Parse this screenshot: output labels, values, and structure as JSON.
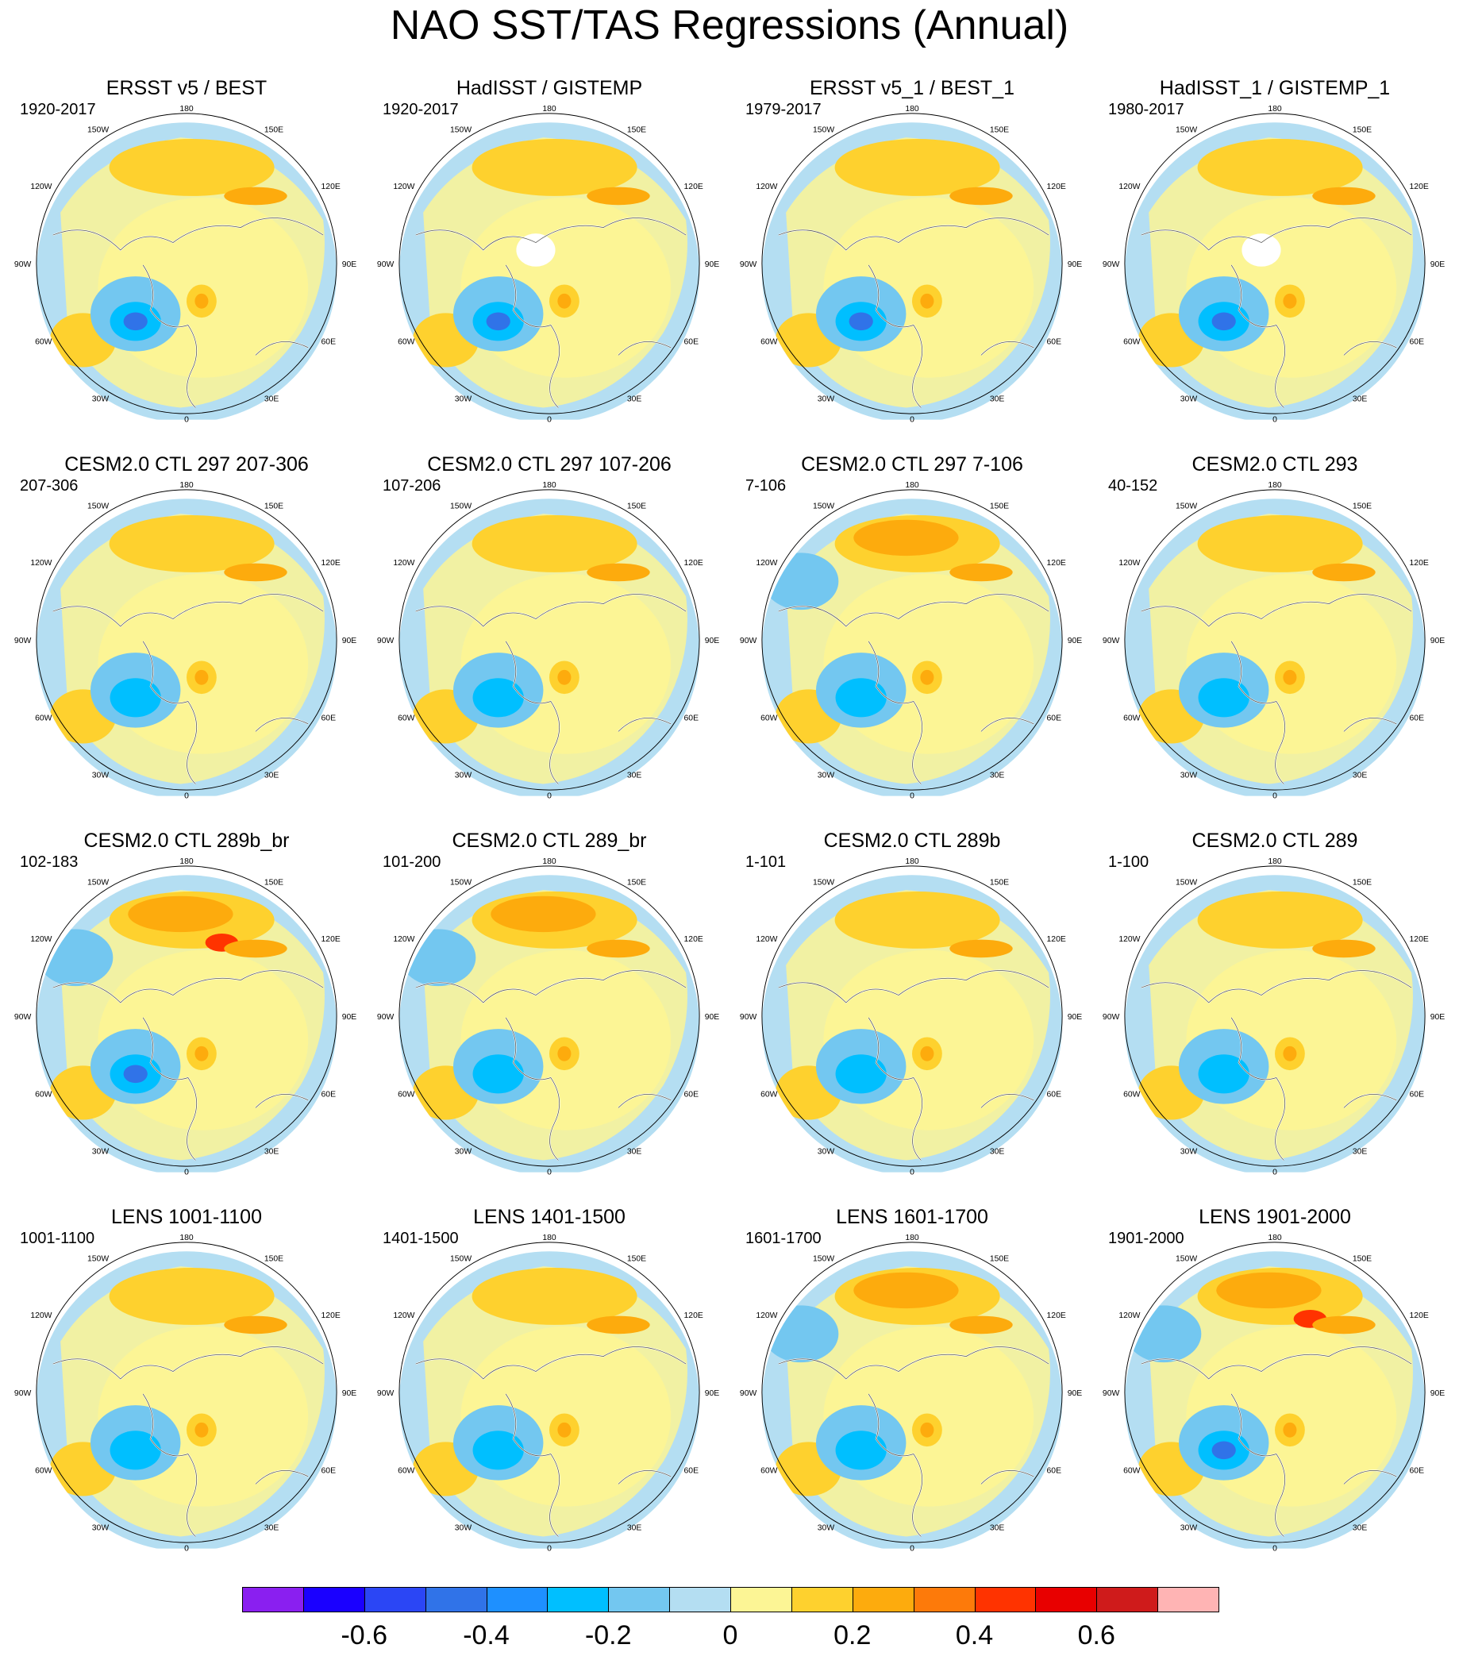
{
  "title": "NAO SST/TAS Regressions (Annual)",
  "lon_labels": {
    "deg180": "180",
    "e150": "150E",
    "e120": "120E",
    "e90": "90E",
    "e60": "60E",
    "e30": "30E",
    "deg0": "0",
    "w30": "30W",
    "w60": "60W",
    "w90": "90W",
    "w120": "120W",
    "w150": "150W"
  },
  "panels": [
    {
      "title": "ERSST v5 / BEST",
      "years": "1920-2017",
      "pattern": "obs"
    },
    {
      "title": "HadISST / GISTEMP",
      "years": "1920-2017",
      "pattern": "obs_white"
    },
    {
      "title": "ERSST v5_1 / BEST_1",
      "years": "1979-2017",
      "pattern": "obs_recent"
    },
    {
      "title": "HadISST_1 / GISTEMP_1",
      "years": "1980-2017",
      "pattern": "obs_recent_white"
    },
    {
      "title": "CESM2.0 CTL 297 207-306",
      "years": "207-306",
      "pattern": "model_weak"
    },
    {
      "title": "CESM2.0 CTL 297 107-206",
      "years": "107-206",
      "pattern": "model"
    },
    {
      "title": "CESM2.0 CTL 297 7-106",
      "years": "7-106",
      "pattern": "model_strong"
    },
    {
      "title": "CESM2.0 CTL 293",
      "years": "40-152",
      "pattern": "model"
    },
    {
      "title": "CESM2.0 CTL 289b_br",
      "years": "102-183",
      "pattern": "model_red"
    },
    {
      "title": "CESM2.0 CTL 289_br",
      "years": "101-200",
      "pattern": "model_blue_pac"
    },
    {
      "title": "CESM2.0 CTL 289b",
      "years": "1-101",
      "pattern": "model"
    },
    {
      "title": "CESM2.0 CTL 289",
      "years": "1-100",
      "pattern": "model_weak"
    },
    {
      "title": "LENS 1001-1100",
      "years": "1001-1100",
      "pattern": "model_weak"
    },
    {
      "title": "LENS 1401-1500",
      "years": "1401-1500",
      "pattern": "model"
    },
    {
      "title": "LENS 1601-1700",
      "years": "1601-1700",
      "pattern": "model_strong"
    },
    {
      "title": "LENS 1901-2000",
      "years": "1901-2000",
      "pattern": "model_red"
    }
  ],
  "colorbar": {
    "colors": [
      "#8a1ff0",
      "#1a00ff",
      "#2b46f5",
      "#3073e8",
      "#1e90ff",
      "#00bfff",
      "#73c7f0",
      "#b4def2",
      "#fcf595",
      "#fed12e",
      "#fdab0d",
      "#fd7a0a",
      "#ff3300",
      "#e80000",
      "#cf1b1b",
      "#ffb4b4"
    ],
    "labels": [
      "-0.6",
      "-0.4",
      "-0.2",
      "0",
      "0.2",
      "0.4",
      "0.6"
    ]
  }
}
